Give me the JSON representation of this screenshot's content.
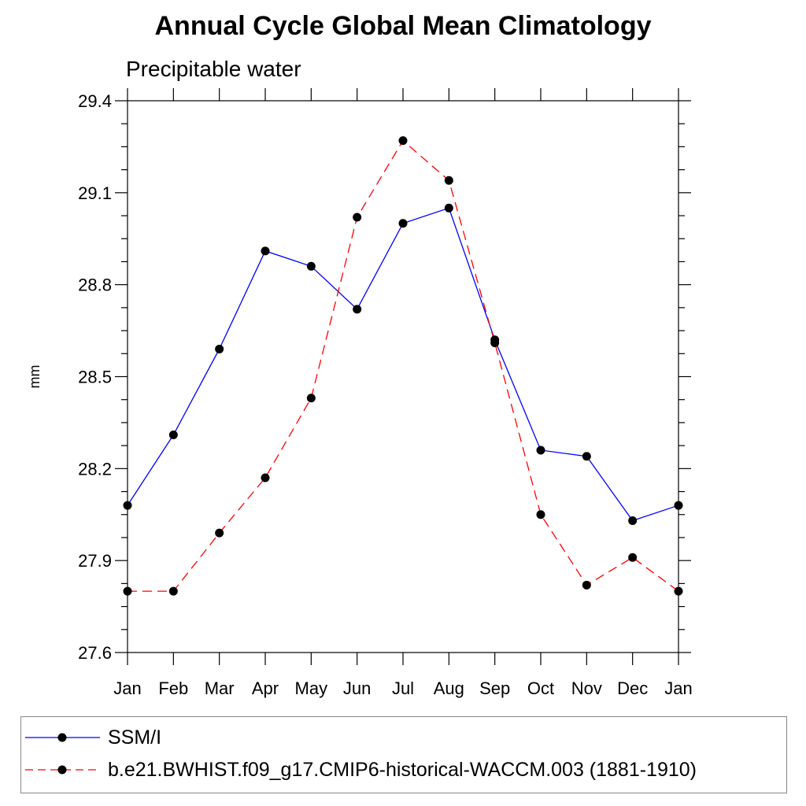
{
  "chart_data": {
    "type": "line",
    "title": "Annual Cycle Global Mean Climatology",
    "subtitle": "Precipitable water",
    "xlabel": "",
    "ylabel": "mm",
    "categories": [
      "Jan",
      "Feb",
      "Mar",
      "Apr",
      "May",
      "Jun",
      "Jul",
      "Aug",
      "Sep",
      "Oct",
      "Nov",
      "Dec",
      "Jan"
    ],
    "ylim": [
      27.6,
      29.4
    ],
    "yticks": [
      "27.6",
      "27.9",
      "28.2",
      "28.5",
      "28.8",
      "29.1",
      "29.4"
    ],
    "series": [
      {
        "name": "SSM/I",
        "color": "#0000ff",
        "linestyle": "solid",
        "values": [
          28.08,
          28.31,
          28.59,
          28.91,
          28.86,
          28.72,
          29.0,
          29.05,
          28.62,
          28.26,
          28.24,
          28.03,
          28.08
        ]
      },
      {
        "name": "b.e21.BWHIST.f09_g17.CMIP6-historical-WACCM.003 (1881-1910)",
        "color": "#ff0000",
        "linestyle": "dashed",
        "values": [
          27.8,
          27.8,
          27.99,
          28.17,
          28.43,
          29.02,
          29.27,
          29.14,
          28.61,
          28.05,
          27.82,
          27.91,
          27.8
        ]
      }
    ],
    "legend_position": "bottom"
  }
}
